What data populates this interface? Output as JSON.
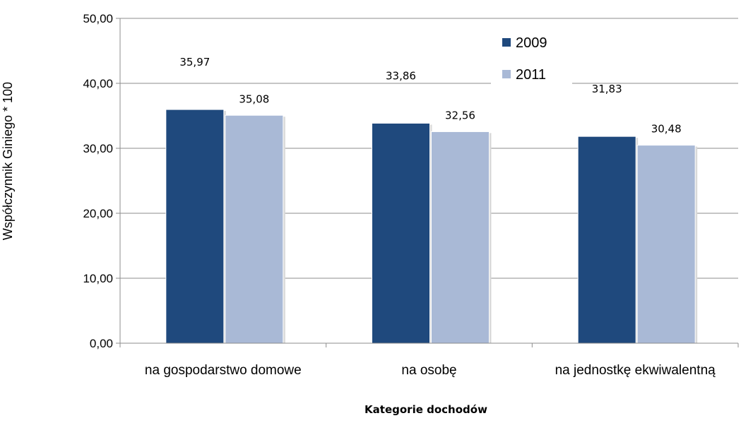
{
  "chart_data": {
    "type": "bar",
    "categories": [
      "na gospodarstwo domowe",
      "na osobę",
      "na jednostkę ekwiwalentną"
    ],
    "series": [
      {
        "name": "2009",
        "values": [
          35.97,
          33.86,
          31.83
        ],
        "labels": [
          "35,97",
          "33,86",
          "31,83"
        ],
        "color": "#1f497d"
      },
      {
        "name": "2011",
        "values": [
          35.08,
          32.56,
          30.48
        ],
        "labels": [
          "35,08",
          "32,56",
          "30,48"
        ],
        "color": "#a9b9d6"
      }
    ],
    "ylim": [
      0,
      50
    ],
    "yticks": [
      0,
      10,
      20,
      30,
      40,
      50
    ],
    "ytick_labels": [
      "0,00",
      "10,00",
      "20,00",
      "30,00",
      "40,00",
      "50,00"
    ],
    "xlabel": "Kategorie dochodów",
    "ylabel": "Współczynnik Giniego * 100",
    "grid": true,
    "legend_position": "top-right"
  }
}
